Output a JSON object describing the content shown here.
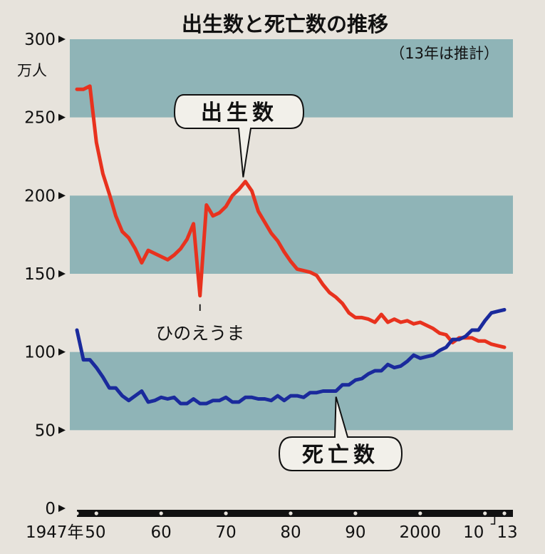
{
  "chart_data": {
    "type": "line",
    "title": "出生数と死亡数の推移",
    "note": "（13年は推計）",
    "y_unit": "万人",
    "ylim": [
      0,
      300
    ],
    "y_ticks": [
      "0",
      "50",
      "100",
      "150",
      "200",
      "250",
      "300"
    ],
    "xlim": [
      1947,
      2013
    ],
    "x_tick_labels": [
      {
        "x": 1947,
        "label": "1947年"
      },
      {
        "x": 1950,
        "label": "50"
      },
      {
        "x": 1960,
        "label": "60"
      },
      {
        "x": 1970,
        "label": "70"
      },
      {
        "x": 1980,
        "label": "80"
      },
      {
        "x": 1990,
        "label": "90"
      },
      {
        "x": 2000,
        "label": "2000"
      },
      {
        "x": 2010,
        "label": "10"
      },
      {
        "x": 2013,
        "label": "13"
      }
    ],
    "grid_bands": [
      [
        50,
        100
      ],
      [
        150,
        200
      ],
      [
        250,
        300
      ]
    ],
    "x": [
      1947,
      1948,
      1949,
      1950,
      1951,
      1952,
      1953,
      1954,
      1955,
      1956,
      1957,
      1958,
      1959,
      1960,
      1961,
      1962,
      1963,
      1964,
      1965,
      1966,
      1967,
      1968,
      1969,
      1970,
      1971,
      1972,
      1973,
      1974,
      1975,
      1976,
      1977,
      1978,
      1979,
      1980,
      1981,
      1982,
      1983,
      1984,
      1985,
      1986,
      1987,
      1988,
      1989,
      1990,
      1991,
      1992,
      1993,
      1994,
      1995,
      1996,
      1997,
      1998,
      1999,
      2000,
      2001,
      2002,
      2003,
      2004,
      2005,
      2006,
      2007,
      2008,
      2009,
      2010,
      2011,
      2012,
      2013
    ],
    "series": [
      {
        "name": "出生数",
        "color": "#e8321e",
        "values": [
          268,
          268,
          270,
          234,
          214,
          201,
          187,
          177,
          173,
          166,
          157,
          165,
          163,
          161,
          159,
          162,
          166,
          172,
          182,
          136,
          194,
          187,
          189,
          193,
          200,
          204,
          209,
          203,
          190,
          183,
          176,
          171,
          164,
          158,
          153,
          152,
          151,
          149,
          143,
          138,
          135,
          131,
          125,
          122,
          122,
          121,
          119,
          124,
          119,
          121,
          119,
          120,
          118,
          119,
          117,
          115,
          112,
          111,
          106,
          109,
          109,
          109,
          107,
          107,
          105,
          104,
          103
        ]
      },
      {
        "name": "死亡数",
        "color": "#1a2a9c",
        "values": [
          114,
          95,
          95,
          90,
          84,
          77,
          77,
          72,
          69,
          72,
          75,
          68,
          69,
          71,
          70,
          71,
          67,
          67,
          70,
          67,
          67,
          69,
          69,
          71,
          68,
          68,
          71,
          71,
          70,
          70,
          69,
          72,
          69,
          72,
          72,
          71,
          74,
          74,
          75,
          75,
          75,
          79,
          79,
          82,
          83,
          86,
          88,
          88,
          92,
          90,
          91,
          94,
          98,
          96,
          97,
          98,
          101,
          103,
          108,
          108,
          110,
          114,
          114,
          120,
          125,
          126,
          127
        ]
      }
    ],
    "annotations": {
      "births_label": "出生数",
      "deaths_label": "死亡数",
      "hinoeuma_label": "ひのえうま",
      "hinoeuma_year": 1966,
      "births_peak_year": 1973,
      "deaths_point_year": 1987
    }
  }
}
